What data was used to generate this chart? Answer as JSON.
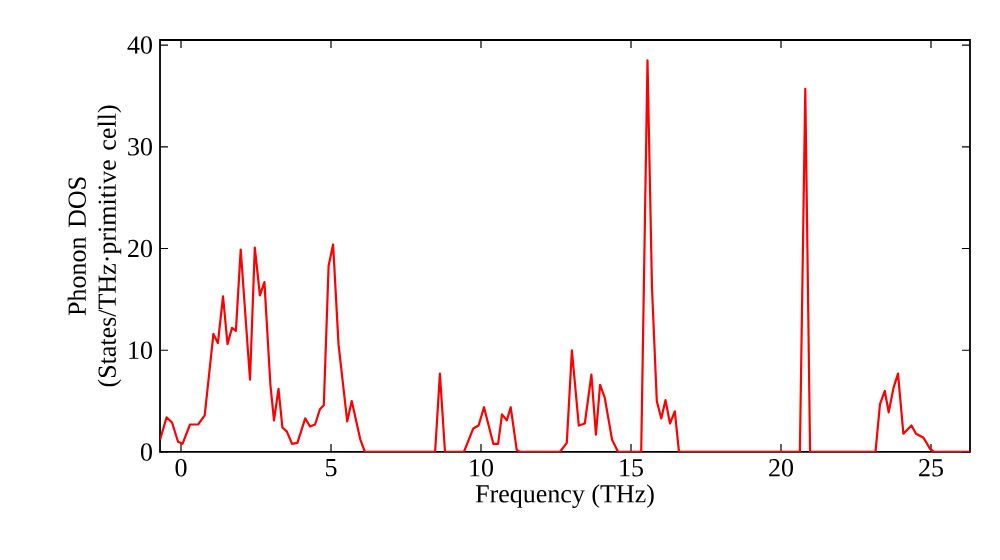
{
  "chart_data": {
    "type": "line",
    "xlabel": "Frequency (THz)",
    "ylabel": "Phonon DOS (States/THz·primitive cell)",
    "xlim": [
      -0.7,
      26.3
    ],
    "ylim": [
      0,
      40.5
    ],
    "xticks": [
      0,
      5,
      10,
      15,
      20,
      25
    ],
    "yticks": [
      0,
      10,
      20,
      30,
      40
    ],
    "grid": false,
    "marker": "none",
    "line_style": "solid",
    "x": [
      -0.7,
      -0.48,
      -0.3,
      -0.1,
      0.05,
      0.3,
      0.57,
      0.79,
      1.08,
      1.23,
      1.4,
      1.55,
      1.7,
      1.83,
      1.99,
      2.3,
      2.46,
      2.63,
      2.78,
      2.98,
      3.1,
      3.25,
      3.38,
      3.53,
      3.7,
      3.88,
      4.14,
      4.3,
      4.47,
      4.63,
      4.76,
      4.92,
      5.07,
      5.25,
      5.54,
      5.69,
      5.98,
      6.13,
      8.47,
      8.63,
      8.8,
      9.43,
      9.74,
      9.92,
      10.1,
      10.41,
      10.57,
      10.7,
      10.86,
      10.99,
      11.19,
      11.3,
      12.63,
      12.86,
      13.03,
      13.26,
      13.46,
      13.68,
      13.83,
      13.97,
      14.12,
      14.37,
      14.57,
      15.34,
      15.55,
      15.7,
      15.86,
      16.01,
      16.15,
      16.3,
      16.46,
      16.6,
      20.63,
      20.81,
      20.97,
      23.15,
      23.3,
      23.46,
      23.59,
      23.75,
      23.9,
      24.08,
      24.35,
      24.5,
      24.75,
      24.97,
      25.1,
      26.3
    ],
    "series": [
      {
        "color": "#ff0000",
        "values": [
          1.2,
          3.4,
          2.9,
          1.0,
          0.8,
          2.7,
          2.7,
          3.6,
          11.6,
          10.7,
          15.3,
          10.6,
          12.2,
          11.9,
          19.9,
          7.1,
          20.1,
          15.4,
          16.7,
          6.6,
          3.1,
          6.2,
          2.4,
          2.0,
          0.8,
          0.9,
          3.3,
          2.5,
          2.7,
          4.2,
          4.6,
          18.3,
          20.4,
          10.6,
          3.0,
          5.0,
          1.2,
          0,
          0,
          7.7,
          0,
          0,
          2.3,
          2.6,
          4.4,
          0.8,
          0.8,
          3.7,
          3.1,
          4.4,
          0.2,
          0,
          0,
          0.9,
          10.0,
          2.6,
          2.8,
          7.6,
          1.7,
          6.6,
          5.4,
          1.2,
          0,
          0,
          38.5,
          16.1,
          5.0,
          3.3,
          5.1,
          2.8,
          4.0,
          0,
          0,
          35.7,
          0,
          0,
          4.7,
          6.0,
          3.9,
          6.3,
          7.7,
          1.8,
          2.6,
          1.8,
          1.4,
          0.3,
          0,
          0
        ]
      }
    ]
  }
}
